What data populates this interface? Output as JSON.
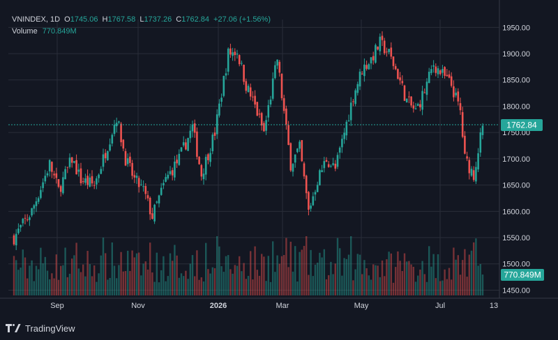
{
  "legend": {
    "symbol": "VNINDEX, 1D",
    "open_label": "O",
    "open": "1745.06",
    "high_label": "H",
    "high": "1767.58",
    "low_label": "L",
    "low": "1737.26",
    "close_label": "C",
    "close": "1762.84",
    "change": "+27.06 (+1.56%)",
    "volume_label": "Volume",
    "volume": "770.849M"
  },
  "badges": {
    "price": "1762.84",
    "volume": "770.849M"
  },
  "footer": {
    "brand": "TradingView"
  },
  "colors": {
    "background": "#131722",
    "up": "#26a69a",
    "down": "#ef5350",
    "grid": "#2a2e39",
    "text": "#d1d4dc"
  },
  "chart_data": {
    "type": "candlestick",
    "title": "VNINDEX, 1D",
    "ylim": [
      1440,
      1965
    ],
    "y_ticks": [
      "1450.00",
      "1500.00",
      "1550.00",
      "1600.00",
      "1650.00",
      "1700.00",
      "1750.00",
      "1800.00",
      "1850.00",
      "1900.00",
      "1950.00"
    ],
    "x_ticks": [
      "Sep",
      "Nov",
      "2026",
      "Mar",
      "May",
      "Jul",
      "13"
    ],
    "last_price": 1762.84,
    "close_path": [
      {
        "t": 0,
        "v": 1550
      },
      {
        "t": 8,
        "v": 1600
      },
      {
        "t": 16,
        "v": 1690
      },
      {
        "t": 20,
        "v": 1640
      },
      {
        "t": 26,
        "v": 1700
      },
      {
        "t": 30,
        "v": 1660
      },
      {
        "t": 36,
        "v": 1650
      },
      {
        "t": 40,
        "v": 1700
      },
      {
        "t": 46,
        "v": 1780
      },
      {
        "t": 50,
        "v": 1700
      },
      {
        "t": 54,
        "v": 1660
      },
      {
        "t": 58,
        "v": 1640
      },
      {
        "t": 62,
        "v": 1590
      },
      {
        "t": 68,
        "v": 1660
      },
      {
        "t": 74,
        "v": 1700
      },
      {
        "t": 80,
        "v": 1760
      },
      {
        "t": 84,
        "v": 1670
      },
      {
        "t": 90,
        "v": 1750
      },
      {
        "t": 96,
        "v": 1900
      },
      {
        "t": 100,
        "v": 1905
      },
      {
        "t": 104,
        "v": 1840
      },
      {
        "t": 108,
        "v": 1800
      },
      {
        "t": 112,
        "v": 1750
      },
      {
        "t": 118,
        "v": 1890
      },
      {
        "t": 120,
        "v": 1820
      },
      {
        "t": 124,
        "v": 1690
      },
      {
        "t": 128,
        "v": 1720
      },
      {
        "t": 132,
        "v": 1600
      },
      {
        "t": 136,
        "v": 1660
      },
      {
        "t": 140,
        "v": 1700
      },
      {
        "t": 144,
        "v": 1680
      },
      {
        "t": 148,
        "v": 1750
      },
      {
        "t": 152,
        "v": 1820
      },
      {
        "t": 156,
        "v": 1870
      },
      {
        "t": 160,
        "v": 1890
      },
      {
        "t": 164,
        "v": 1920
      },
      {
        "t": 168,
        "v": 1900
      },
      {
        "t": 172,
        "v": 1860
      },
      {
        "t": 176,
        "v": 1810
      },
      {
        "t": 180,
        "v": 1790
      },
      {
        "t": 184,
        "v": 1830
      },
      {
        "t": 188,
        "v": 1880
      },
      {
        "t": 192,
        "v": 1860
      },
      {
        "t": 196,
        "v": 1840
      },
      {
        "t": 200,
        "v": 1790
      },
      {
        "t": 202,
        "v": 1700
      },
      {
        "t": 206,
        "v": 1670
      },
      {
        "t": 210,
        "v": 1762.84
      }
    ]
  }
}
